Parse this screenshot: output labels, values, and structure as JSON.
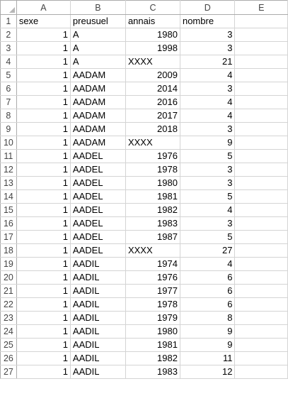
{
  "columns": [
    "A",
    "B",
    "C",
    "D",
    "E"
  ],
  "rows": [
    {
      "n": "1",
      "a": "sexe",
      "b": "preusuel",
      "c": "annais",
      "d": "nombre",
      "header": true
    },
    {
      "n": "2",
      "a": "1",
      "b": "A",
      "c": "1980",
      "d": "3"
    },
    {
      "n": "3",
      "a": "1",
      "b": "A",
      "c": "1998",
      "d": "3"
    },
    {
      "n": "4",
      "a": "1",
      "b": "A",
      "c": "XXXX",
      "d": "21"
    },
    {
      "n": "5",
      "a": "1",
      "b": "AADAM",
      "c": "2009",
      "d": "4"
    },
    {
      "n": "6",
      "a": "1",
      "b": "AADAM",
      "c": "2014",
      "d": "3"
    },
    {
      "n": "7",
      "a": "1",
      "b": "AADAM",
      "c": "2016",
      "d": "4"
    },
    {
      "n": "8",
      "a": "1",
      "b": "AADAM",
      "c": "2017",
      "d": "4"
    },
    {
      "n": "9",
      "a": "1",
      "b": "AADAM",
      "c": "2018",
      "d": "3"
    },
    {
      "n": "10",
      "a": "1",
      "b": "AADAM",
      "c": "XXXX",
      "d": "9"
    },
    {
      "n": "11",
      "a": "1",
      "b": "AADEL",
      "c": "1976",
      "d": "5"
    },
    {
      "n": "12",
      "a": "1",
      "b": "AADEL",
      "c": "1978",
      "d": "3"
    },
    {
      "n": "13",
      "a": "1",
      "b": "AADEL",
      "c": "1980",
      "d": "3"
    },
    {
      "n": "14",
      "a": "1",
      "b": "AADEL",
      "c": "1981",
      "d": "5"
    },
    {
      "n": "15",
      "a": "1",
      "b": "AADEL",
      "c": "1982",
      "d": "4"
    },
    {
      "n": "16",
      "a": "1",
      "b": "AADEL",
      "c": "1983",
      "d": "3"
    },
    {
      "n": "17",
      "a": "1",
      "b": "AADEL",
      "c": "1987",
      "d": "5"
    },
    {
      "n": "18",
      "a": "1",
      "b": "AADEL",
      "c": "XXXX",
      "d": "27"
    },
    {
      "n": "19",
      "a": "1",
      "b": "AADIL",
      "c": "1974",
      "d": "4"
    },
    {
      "n": "20",
      "a": "1",
      "b": "AADIL",
      "c": "1976",
      "d": "6"
    },
    {
      "n": "21",
      "a": "1",
      "b": "AADIL",
      "c": "1977",
      "d": "6"
    },
    {
      "n": "22",
      "a": "1",
      "b": "AADIL",
      "c": "1978",
      "d": "6"
    },
    {
      "n": "23",
      "a": "1",
      "b": "AADIL",
      "c": "1979",
      "d": "8"
    },
    {
      "n": "24",
      "a": "1",
      "b": "AADIL",
      "c": "1980",
      "d": "9"
    },
    {
      "n": "25",
      "a": "1",
      "b": "AADIL",
      "c": "1981",
      "d": "9"
    },
    {
      "n": "26",
      "a": "1",
      "b": "AADIL",
      "c": "1982",
      "d": "11"
    },
    {
      "n": "27",
      "a": "1",
      "b": "AADIL",
      "c": "1983",
      "d": "12"
    }
  ]
}
